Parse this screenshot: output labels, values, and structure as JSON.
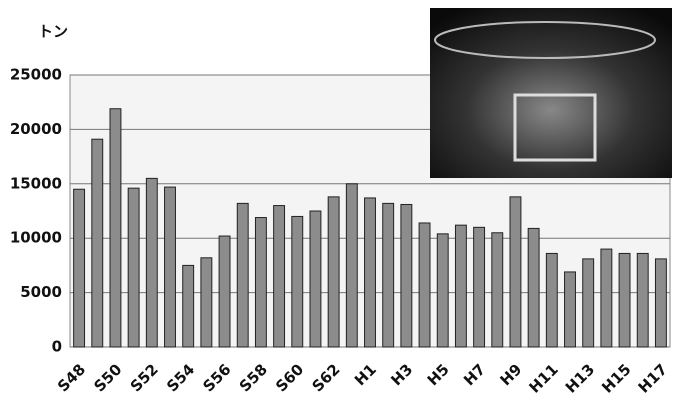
{
  "chart_data": {
    "type": "bar",
    "y_label": "トン",
    "categories": [
      "S48",
      null,
      "S50",
      null,
      "S52",
      null,
      "S54",
      null,
      "S56",
      null,
      "S58",
      null,
      "S60",
      null,
      "S62",
      null,
      "H1",
      null,
      "H3",
      null,
      "H5",
      null,
      "H7",
      null,
      "H9",
      null,
      "H11",
      null,
      "H13",
      null,
      "H15",
      null,
      "H17"
    ],
    "values": [
      14500,
      19100,
      21900,
      14600,
      15500,
      14700,
      7500,
      8200,
      10200,
      13200,
      11900,
      13000,
      12000,
      12500,
      13800,
      15000,
      13700,
      13200,
      13100,
      11400,
      10400,
      11200,
      11000,
      10500,
      13800,
      10900,
      8600,
      6900,
      8100,
      9000,
      8600,
      8600,
      8100
    ],
    "color": "#8c8c8c",
    "ylim": [
      0,
      25000
    ],
    "yticks": [
      0,
      5000,
      10000,
      15000,
      20000,
      25000
    ],
    "grid": true
  }
}
